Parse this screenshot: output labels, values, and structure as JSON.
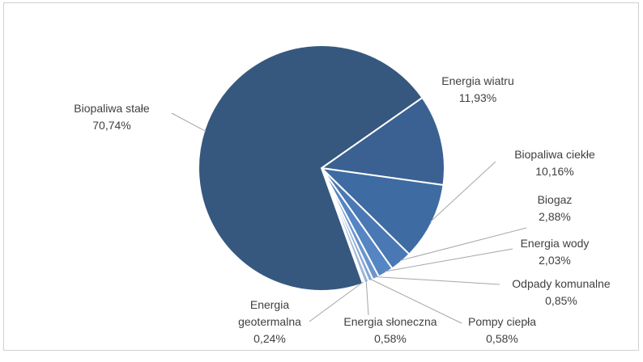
{
  "chart_data": {
    "type": "pie",
    "categories": [
      "Energia wiatru",
      "Biopaliwa ciekłe",
      "Biogaz",
      "Energia wody",
      "Odpady komunalne",
      "Pompy ciepła",
      "Energia słoneczna",
      "Energia geotermalna",
      "Biopaliwa stałe"
    ],
    "values": [
      11.93,
      10.16,
      2.88,
      2.03,
      0.85,
      0.58,
      0.58,
      0.24,
      70.74
    ],
    "value_labels": [
      "11,93%",
      "10,16%",
      "2,88%",
      "2,03%",
      "0,85%",
      "0,58%",
      "0,58%",
      "0,24%",
      "70,74%"
    ],
    "colors": [
      "#3a6192",
      "#3e6ba1",
      "#4a78b4",
      "#5585c2",
      "#6b95cc",
      "#86a7d4",
      "#9db8dc",
      "#b5c8e4",
      "#36587e"
    ]
  }
}
